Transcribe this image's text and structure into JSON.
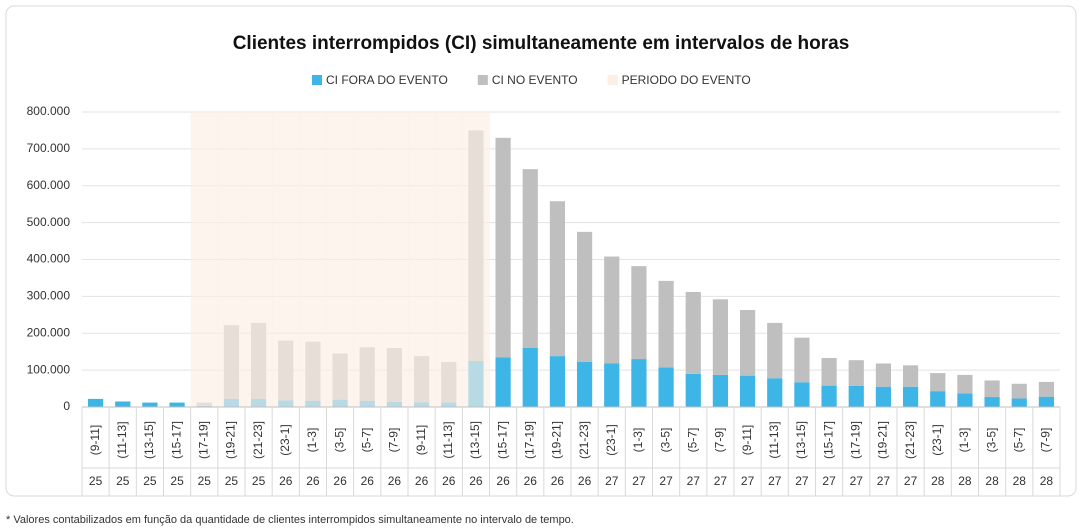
{
  "chart_data": {
    "type": "stacked_bar",
    "title": "Clientes interrompidos (CI) simultaneamente em intervalos de horas",
    "footnote": "* Valores contabilizados em função da quantidade de clientes interrompidos simultaneamente no intervalo de tempo.",
    "categories": [
      "(9-11]",
      "(11-13]",
      "(13-15]",
      "(15-17]",
      "(17-19]",
      "(19-21]",
      "(21-23]",
      "(23-1]",
      "(1-3]",
      "(3-5]",
      "(5-7]",
      "(7-9]",
      "(9-11]",
      "(11-13]",
      "(13-15]",
      "(15-17]",
      "(17-19]",
      "(19-21]",
      "(21-23]",
      "(23-1]",
      "(1-3]",
      "(3-5]",
      "(5-7]",
      "(7-9]",
      "(9-11]",
      "(11-13]",
      "(13-15]",
      "(15-17]",
      "(17-19]",
      "(19-21]",
      "(21-23]",
      "(23-1]",
      "(1-3]",
      "(3-5]",
      "(5-7]",
      "(7-9]"
    ],
    "days": [
      "25",
      "25",
      "25",
      "25",
      "25",
      "25",
      "25",
      "26",
      "26",
      "26",
      "26",
      "26",
      "26",
      "26",
      "26",
      "26",
      "26",
      "26",
      "26",
      "27",
      "27",
      "27",
      "27",
      "27",
      "27",
      "27",
      "27",
      "27",
      "27",
      "27",
      "27",
      "28",
      "28",
      "28",
      "28",
      "28"
    ],
    "series": [
      {
        "name": "CI FORA DO EVENTO",
        "color": "#3db5e6",
        "values": [
          22000,
          15000,
          12000,
          12000,
          3000,
          22000,
          22000,
          18000,
          17000,
          20000,
          17000,
          14000,
          13000,
          12000,
          125000,
          135000,
          160000,
          138000,
          122000,
          118000,
          130000,
          107000,
          90000,
          87000,
          85000,
          78000,
          67000,
          58000,
          57000,
          55000,
          55000,
          43000,
          37000,
          27000,
          23000,
          28000
        ]
      },
      {
        "name": "CI NO EVENTO",
        "color": "#bfbfbf",
        "values": [
          0,
          0,
          0,
          0,
          9000,
          200000,
          206000,
          162000,
          160000,
          125000,
          145000,
          146000,
          125000,
          110000,
          625000,
          595000,
          485000,
          420000,
          353000,
          290000,
          252000,
          235000,
          222000,
          205000,
          178000,
          150000,
          121000,
          75000,
          70000,
          63000,
          58000,
          49000,
          50000,
          45000,
          40000,
          40000
        ]
      }
    ],
    "event": {
      "name": "PERIODO DO EVENTO",
      "color": "#fbeee3",
      "in_event": [
        false,
        false,
        false,
        false,
        true,
        true,
        true,
        true,
        true,
        true,
        true,
        true,
        true,
        true,
        true,
        false,
        false,
        false,
        false,
        false,
        false,
        false,
        false,
        false,
        false,
        false,
        false,
        false,
        false,
        false,
        false,
        false,
        false,
        false,
        false,
        false
      ]
    },
    "ylim": [
      0,
      800000
    ],
    "yticks": [
      0,
      {
        "value": 100000,
        "label": "100.000"
      },
      {
        "value": 200000,
        "label": "200.000"
      },
      {
        "value": 300000,
        "label": "300.000"
      },
      {
        "value": 400000,
        "label": "400.000"
      },
      {
        "value": 500000,
        "label": "500.000"
      },
      {
        "value": 600000,
        "label": "600.000"
      },
      {
        "value": 700000,
        "label": "700.000"
      },
      {
        "value": 800000,
        "label": "800.000"
      }
    ],
    "grid": true
  }
}
